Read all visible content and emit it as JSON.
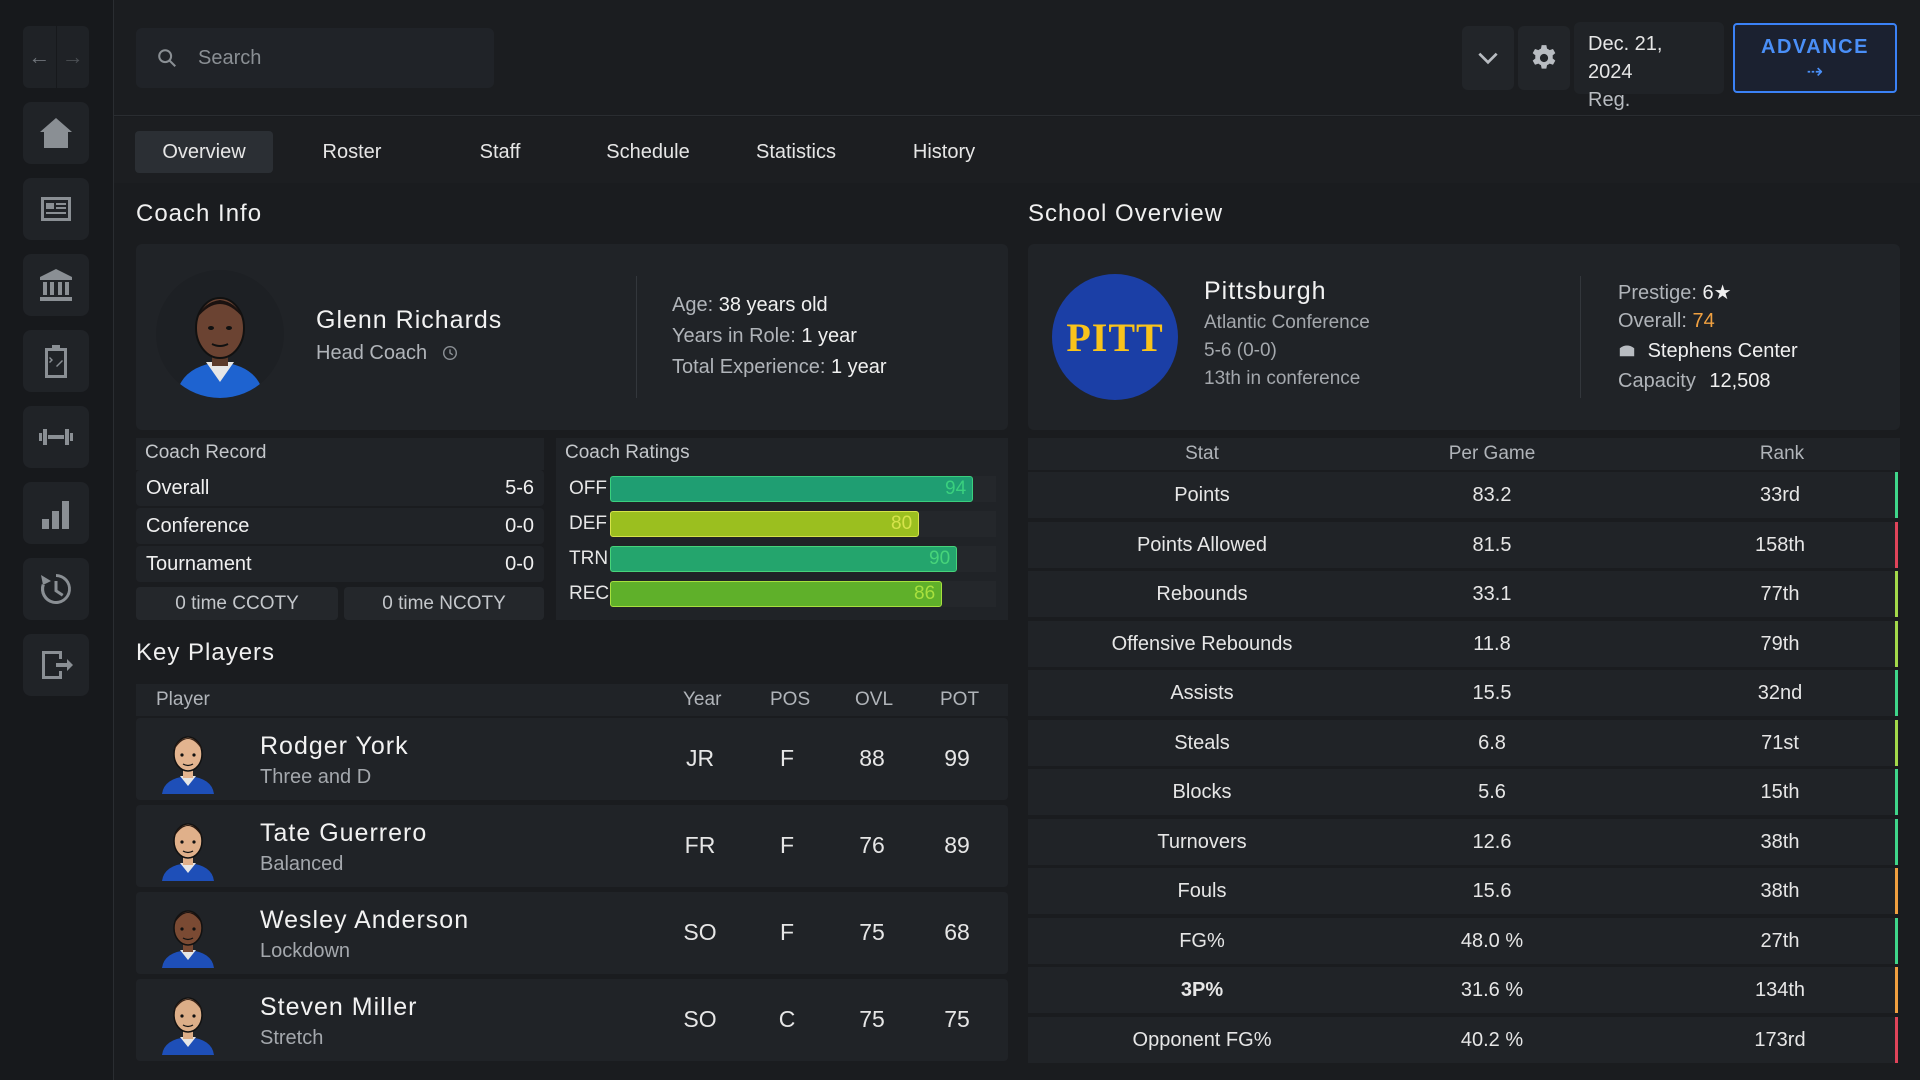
{
  "nav": {
    "back_icon": "arrow-left-icon",
    "forward_icon": "arrow-right-icon"
  },
  "sidebar": {
    "items": [
      {
        "name": "home-icon"
      },
      {
        "name": "newspaper-icon"
      },
      {
        "name": "bank-icon"
      },
      {
        "name": "clipboard-icon"
      },
      {
        "name": "dumbbell-icon"
      },
      {
        "name": "bar-chart-icon"
      },
      {
        "name": "history-icon"
      },
      {
        "name": "logout-icon"
      }
    ]
  },
  "search": {
    "placeholder": "Search"
  },
  "header": {
    "date": "Dec. 21, 2024",
    "phase": "Reg. Season",
    "advance_label": "ADVANCE",
    "advance_arrow": "⇢",
    "accent": "#3b82f6"
  },
  "tabs": [
    {
      "label": "Overview",
      "active": true
    },
    {
      "label": "Roster"
    },
    {
      "label": "Staff"
    },
    {
      "label": "Schedule"
    },
    {
      "label": "Statistics"
    },
    {
      "label": "History"
    }
  ],
  "coach_info": {
    "title": "Coach Info",
    "name": "Glenn Richards",
    "role": "Head Coach",
    "age_label": "Age:",
    "age": "38 years old",
    "years_label": "Years in Role:",
    "years": "1 year",
    "exp_label": "Total Experience:",
    "exp": "1 year"
  },
  "coach_record": {
    "title": "Coach Record",
    "rows": [
      {
        "label": "Overall",
        "value": "5-6"
      },
      {
        "label": "Conference",
        "value": "0-0"
      },
      {
        "label": "Tournament",
        "value": "0-0"
      }
    ],
    "ccoty": "0 time CCOTY",
    "ncoty": "0 time NCOTY"
  },
  "coach_ratings": {
    "title": "Coach Ratings",
    "rows": [
      {
        "label": "OFF",
        "value": 94,
        "color": "#1f9e72",
        "text": "#3ad07e"
      },
      {
        "label": "DEF",
        "value": 80,
        "color": "#9bbf1f",
        "text": "#d6e34a"
      },
      {
        "label": "TRN",
        "value": 90,
        "color": "#24a56d",
        "text": "#47d47a"
      },
      {
        "label": "REC",
        "value": 86,
        "color": "#5fb02a",
        "text": "#a8e03e"
      }
    ]
  },
  "key_players": {
    "title": "Key Players",
    "headers": {
      "player": "Player",
      "year": "Year",
      "pos": "POS",
      "ovl": "OVL",
      "pot": "POT"
    },
    "rows": [
      {
        "name": "Rodger York",
        "archetype": "Three and D",
        "year": "JR",
        "pos": "F",
        "ovl": "88",
        "pot": "99"
      },
      {
        "name": "Tate Guerrero",
        "archetype": "Balanced",
        "year": "FR",
        "pos": "F",
        "ovl": "76",
        "pot": "89"
      },
      {
        "name": "Wesley Anderson",
        "archetype": "Lockdown",
        "year": "SO",
        "pos": "F",
        "ovl": "75",
        "pot": "68"
      },
      {
        "name": "Steven Miller",
        "archetype": "Stretch",
        "year": "SO",
        "pos": "C",
        "ovl": "75",
        "pot": "75"
      }
    ]
  },
  "school": {
    "title": "School Overview",
    "logo_text": "PITT",
    "name": "Pittsburgh",
    "conference": "Atlantic Conference",
    "record": "5-6 (0-0)",
    "standing": "13th in conference",
    "prestige_label": "Prestige:",
    "prestige": "6",
    "prestige_star": "★",
    "overall_label": "Overall:",
    "overall": "74",
    "overall_color": "#f0a040",
    "arena": "Stephens Center",
    "capacity_label": "Capacity",
    "capacity": "12,508"
  },
  "stats": {
    "headers": {
      "stat": "Stat",
      "per_game": "Per Game",
      "rank": "Rank"
    },
    "rows": [
      {
        "stat": "Points",
        "per_game": "83.2",
        "rank": "33rd",
        "color": "#3fd68a"
      },
      {
        "stat": "Points Allowed",
        "per_game": "81.5",
        "rank": "158th",
        "color": "#e0445a"
      },
      {
        "stat": "Rebounds",
        "per_game": "33.1",
        "rank": "77th",
        "color": "#a3d94a"
      },
      {
        "stat": "Offensive Rebounds",
        "per_game": "11.8",
        "rank": "79th",
        "color": "#a3d94a"
      },
      {
        "stat": "Assists",
        "per_game": "15.5",
        "rank": "32nd",
        "color": "#3fd68a"
      },
      {
        "stat": "Steals",
        "per_game": "6.8",
        "rank": "71st",
        "color": "#a3d94a"
      },
      {
        "stat": "Blocks",
        "per_game": "5.6",
        "rank": "15th",
        "color": "#3fd68a"
      },
      {
        "stat": "Turnovers",
        "per_game": "12.6",
        "rank": "38th",
        "color": "#3fd68a"
      },
      {
        "stat": "Fouls",
        "per_game": "15.6",
        "rank": "38th",
        "color": "#f0a040"
      },
      {
        "stat": "FG%",
        "per_game": "48.0 %",
        "rank": "27th",
        "color": "#3fd68a"
      },
      {
        "stat": "3P%",
        "per_game": "31.6 %",
        "rank": "134th",
        "color": "#f0a040"
      },
      {
        "stat": "Opponent FG%",
        "per_game": "40.2 %",
        "rank": "173rd",
        "color": "#e0445a"
      }
    ]
  }
}
